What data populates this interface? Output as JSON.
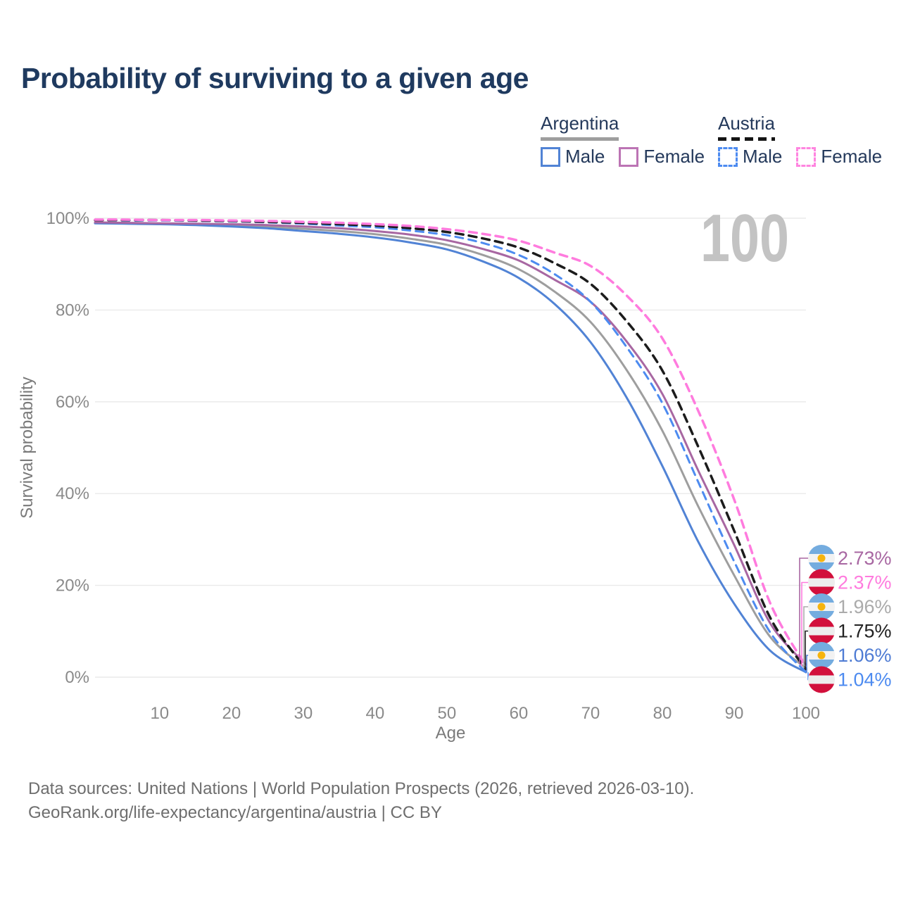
{
  "header": {
    "title": "Probability of surviving to a given age"
  },
  "legend": {
    "argentina": {
      "label": "Argentina",
      "male": "Male",
      "female": "Female",
      "male_color": "#5183D5",
      "female_color": "#BC74B4",
      "line_style": "solid"
    },
    "austria": {
      "label": "Austria",
      "male": "Male",
      "female": "Female",
      "male_color": "#4D8BF0",
      "female_color": "#FF85E0",
      "line_style": "dashed"
    }
  },
  "watermark": "100",
  "colors": {
    "title_navy": "#1F3A5F",
    "grid": "#EAEAEA",
    "axis_text": "#8A8A8A",
    "watermark_gray": "#C3C3C3",
    "argentina_flag_blue": "#74ACDF",
    "argentina_flag_sun": "#F6B40E",
    "austria_flag_red": "#D2103C"
  },
  "chart_data": {
    "type": "line",
    "title": "Probability of surviving to a given age",
    "xlabel": "Age",
    "ylabel": "Survival probability",
    "xlim": [
      1,
      100
    ],
    "ylim": [
      0,
      100
    ],
    "grid": "horizontal-only",
    "x_ticks": [
      10,
      20,
      30,
      40,
      50,
      60,
      70,
      80,
      90,
      100
    ],
    "y_ticks": [
      100,
      80,
      60,
      40,
      20,
      0
    ],
    "y_tick_suffix": "%",
    "legend_position": "top-right",
    "x": [
      1,
      5,
      10,
      15,
      20,
      25,
      30,
      35,
      40,
      45,
      50,
      55,
      60,
      65,
      70,
      75,
      80,
      85,
      90,
      95,
      100
    ],
    "series": [
      {
        "name": "Argentina Total",
        "style": "solid",
        "color": "#9E9E9E",
        "width": 3,
        "values": [
          99.0,
          98.9,
          98.8,
          98.6,
          98.4,
          98.1,
          97.7,
          97.2,
          96.5,
          95.5,
          94.2,
          92.0,
          88.9,
          84.0,
          77.4,
          67.0,
          53.7,
          37.2,
          22.2,
          8.8,
          1.96
        ]
      },
      {
        "name": "Argentina Male",
        "style": "solid",
        "color": "#5183D5",
        "width": 3,
        "values": [
          98.9,
          98.8,
          98.7,
          98.5,
          98.2,
          97.8,
          97.2,
          96.6,
          95.8,
          94.7,
          93.2,
          90.6,
          87.0,
          81.3,
          73.0,
          61.0,
          46.0,
          29.5,
          16.0,
          5.8,
          1.06
        ]
      },
      {
        "name": "Argentina Female",
        "style": "solid",
        "color": "#A867A2",
        "width": 3,
        "values": [
          99.1,
          99.0,
          98.9,
          98.8,
          98.7,
          98.5,
          98.2,
          97.8,
          97.2,
          96.4,
          95.2,
          93.3,
          90.8,
          86.6,
          81.8,
          73.2,
          61.7,
          45.0,
          28.8,
          11.8,
          2.73
        ]
      },
      {
        "name": "Austria Male",
        "style": "dashed",
        "color": "#4D8BF0",
        "width": 3,
        "values": [
          99.6,
          99.5,
          99.5,
          99.4,
          99.3,
          99.1,
          98.8,
          98.4,
          98.0,
          97.3,
          96.3,
          94.6,
          92.0,
          87.8,
          81.8,
          72.0,
          59.7,
          42.5,
          25.2,
          9.8,
          1.04
        ]
      },
      {
        "name": "Austria Total",
        "style": "dashed",
        "color": "#1C1C1C",
        "width": 3.5,
        "values": [
          99.6,
          99.6,
          99.6,
          99.5,
          99.4,
          99.2,
          99.0,
          98.7,
          98.4,
          97.8,
          97.0,
          95.6,
          93.6,
          90.2,
          85.7,
          77.6,
          66.8,
          50.2,
          31.9,
          13.0,
          1.75
        ]
      },
      {
        "name": "Austria Female",
        "style": "dashed",
        "color": "#FF7BDE",
        "width": 3.5,
        "values": [
          99.7,
          99.7,
          99.6,
          99.6,
          99.5,
          99.4,
          99.2,
          99.0,
          98.7,
          98.3,
          97.6,
          96.6,
          95.1,
          92.5,
          89.6,
          83.2,
          73.8,
          58.0,
          38.7,
          16.2,
          2.37
        ]
      }
    ],
    "end_labels": [
      {
        "text": "2.73%",
        "pct": 2.73,
        "flag": "argentina",
        "series": "Argentina Female",
        "color": "#A867A2"
      },
      {
        "text": "2.37%",
        "pct": 2.37,
        "flag": "austria",
        "series": "Austria Female",
        "color": "#FF7BDE"
      },
      {
        "text": "1.96%",
        "pct": 1.96,
        "flag": "argentina",
        "series": "Argentina Total",
        "color": "#ABABAB"
      },
      {
        "text": "1.75%",
        "pct": 1.75,
        "flag": "austria",
        "series": "Austria Total",
        "color": "#222222"
      },
      {
        "text": "1.06%",
        "pct": 1.06,
        "flag": "argentina",
        "series": "Argentina Male",
        "color": "#4F7CD4"
      },
      {
        "text": "1.04%",
        "pct": 1.04,
        "flag": "austria",
        "series": "Austria Male",
        "color": "#4D8BF0"
      }
    ]
  },
  "footer": {
    "line1": "Data sources: United Nations | World Population Prospects (2026, retrieved 2026-03-10).",
    "line2": "GeoRank.org/life-expectancy/argentina/austria | CC BY"
  }
}
